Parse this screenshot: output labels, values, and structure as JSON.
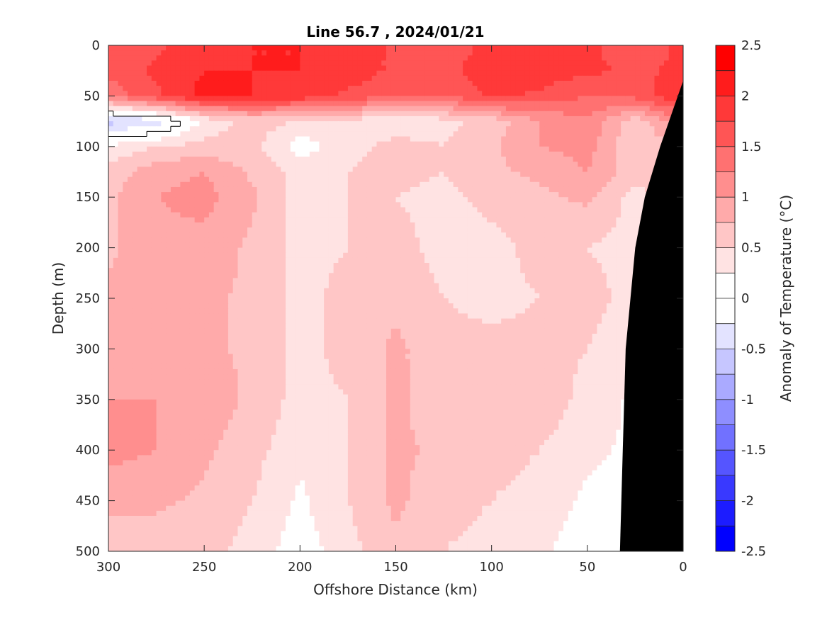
{
  "chart_data": {
    "type": "heatmap",
    "title": "Line 56.7 , 2024/01/21",
    "xlabel": "Offshore Distance (km)",
    "ylabel": "Depth (m)",
    "colorbar_label": "Anomaly of Temperature (°C)",
    "xlim": [
      300,
      0
    ],
    "ylim": [
      0,
      500
    ],
    "x_reversed": true,
    "y_reversed": true,
    "x_ticks": [
      300,
      250,
      200,
      150,
      100,
      50,
      0
    ],
    "x_tick_labels": [
      "300",
      "250",
      "200",
      "150",
      "100",
      "50",
      "0"
    ],
    "y_ticks": [
      0,
      50,
      100,
      150,
      200,
      250,
      300,
      350,
      400,
      450,
      500
    ],
    "y_tick_labels": [
      "0",
      "50",
      "100",
      "150",
      "200",
      "250",
      "300",
      "350",
      "400",
      "450",
      "500"
    ],
    "colorbar": {
      "range": [
        -2.5,
        2.5
      ],
      "levels": [
        -2.5,
        -2.25,
        -2.0,
        -1.75,
        -1.5,
        -1.25,
        -1.0,
        -0.75,
        -0.5,
        -0.25,
        0.0,
        0.25,
        0.5,
        0.75,
        1.0,
        1.25,
        1.5,
        1.75,
        2.0,
        2.25,
        2.5
      ],
      "colors": [
        "#0000ff",
        "#1c1cff",
        "#3939ff",
        "#5555ff",
        "#7171ff",
        "#8e8eff",
        "#aaaaff",
        "#c6c6ff",
        "#e3e3ff",
        "#ffffff",
        "#ffffff",
        "#ffe3e3",
        "#ffc6c6",
        "#ffaaaa",
        "#ff8e8e",
        "#ff7171",
        "#ff5555",
        "#ff3939",
        "#ff1c1c",
        "#ff0000"
      ],
      "ticks": [
        2.5,
        2,
        1.5,
        1,
        0.5,
        0,
        -0.5,
        -1,
        -1.5,
        -2,
        -2.5
      ],
      "tick_labels": [
        "2.5",
        "2",
        "1.5",
        "1",
        "0.5",
        "0",
        "-0.5",
        "-1",
        "-1.5",
        "-2",
        "-2.5"
      ]
    },
    "x": [
      300,
      275,
      250,
      225,
      200,
      175,
      150,
      125,
      100,
      75,
      50,
      25,
      0
    ],
    "y": [
      0,
      25,
      50,
      75,
      100,
      125,
      150,
      200,
      250,
      300,
      350,
      400,
      450,
      500
    ],
    "z": [
      [
        1.7,
        1.7,
        1.9,
        2.0,
        2.0,
        1.9,
        1.7,
        1.5,
        1.9,
        1.8,
        1.8,
        1.6,
        1.8
      ],
      [
        1.6,
        1.8,
        2.0,
        2.0,
        2.0,
        1.9,
        1.7,
        1.6,
        2.0,
        1.9,
        1.8,
        1.7,
        1.8
      ],
      [
        1.3,
        1.7,
        2.1,
        2.0,
        1.9,
        1.7,
        1.5,
        1.5,
        1.8,
        1.7,
        1.5,
        1.6,
        2.0
      ],
      [
        -0.6,
        -0.4,
        0.3,
        0.6,
        0.5,
        0.4,
        0.3,
        0.4,
        0.6,
        1.0,
        1.2,
        0.6,
        1.2
      ],
      [
        0.3,
        0.5,
        0.6,
        0.6,
        0.1,
        0.4,
        0.6,
        0.5,
        0.7,
        1.0,
        1.1,
        0.5,
        0.8
      ],
      [
        0.6,
        0.9,
        1.0,
        0.7,
        0.4,
        0.5,
        0.6,
        0.5,
        0.7,
        0.8,
        1.0,
        0.6,
        0.7
      ],
      [
        0.7,
        1.0,
        1.1,
        0.8,
        0.4,
        0.5,
        0.5,
        0.4,
        0.6,
        0.7,
        0.8,
        0.4,
        0.6
      ],
      [
        0.7,
        0.9,
        0.9,
        0.7,
        0.4,
        0.5,
        0.6,
        0.4,
        0.4,
        0.6,
        0.5,
        0.4,
        0.4
      ],
      [
        0.8,
        0.9,
        0.8,
        0.7,
        0.4,
        0.6,
        0.7,
        0.5,
        0.4,
        0.5,
        0.6,
        0.4,
        0.4
      ],
      [
        0.9,
        0.9,
        0.8,
        0.7,
        0.4,
        0.6,
        0.8,
        0.6,
        0.6,
        0.6,
        0.5,
        0.3,
        0.3
      ],
      [
        1.0,
        1.0,
        0.9,
        0.7,
        0.4,
        0.5,
        0.8,
        0.6,
        0.6,
        0.7,
        0.4,
        0.2,
        0.2
      ],
      [
        1.1,
        1.0,
        0.8,
        0.6,
        0.3,
        0.5,
        0.8,
        0.7,
        0.6,
        0.5,
        0.3,
        0.2,
        0.2
      ],
      [
        0.8,
        0.8,
        0.7,
        0.5,
        0.2,
        0.5,
        0.8,
        0.6,
        0.5,
        0.4,
        0.2,
        0.1,
        0.1
      ],
      [
        0.6,
        0.6,
        0.6,
        0.4,
        0.1,
        0.4,
        0.7,
        0.5,
        0.4,
        0.3,
        0.1,
        0.1,
        0.1
      ]
    ],
    "bathymetry_mask": {
      "color": "#000000",
      "depth_m": [
        35,
        100,
        150,
        200,
        300,
        400,
        500
      ],
      "distance_km": [
        0,
        12,
        20,
        25,
        30,
        31.5,
        33
      ]
    },
    "zero_contour_visible": true
  }
}
